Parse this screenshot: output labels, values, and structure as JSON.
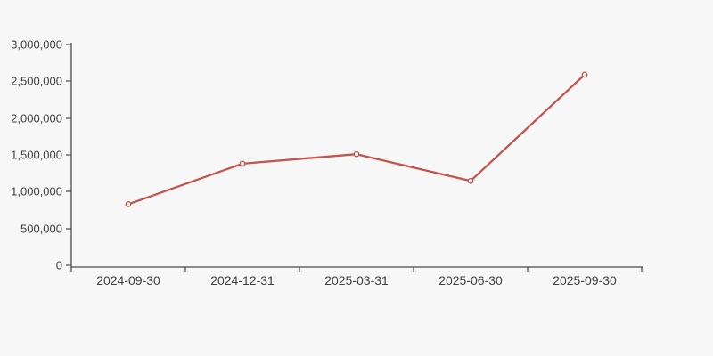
{
  "chart_data": {
    "type": "line",
    "title": "",
    "categories": [
      "2024-09-30",
      "2024-12-31",
      "2025-03-31",
      "2025-06-30",
      "2025-09-30"
    ],
    "series": [
      {
        "name": "series-1",
        "values": [
          830000,
          1380000,
          1510000,
          1145000,
          2590000
        ]
      }
    ],
    "ylim": [
      0,
      3000000
    ],
    "ytick_interval": 500000,
    "ytick_values": [
      0,
      500000,
      1000000,
      1500000,
      2000000,
      2500000,
      3000000
    ],
    "ytick_labels": [
      "0",
      "500,000",
      "1,000,000",
      "1,500,000",
      "2,000,000",
      "2,500,000",
      "3,000,000"
    ],
    "xlabel": "",
    "ylabel": "",
    "grid": false,
    "legend_position": "none",
    "marker": "hollow-circle",
    "colors": {
      "background": "#f7f7f7",
      "line": "#c4544e",
      "marker_fill": "#f7f7f7",
      "axis": "#222222",
      "tick_label": "#404040"
    }
  }
}
